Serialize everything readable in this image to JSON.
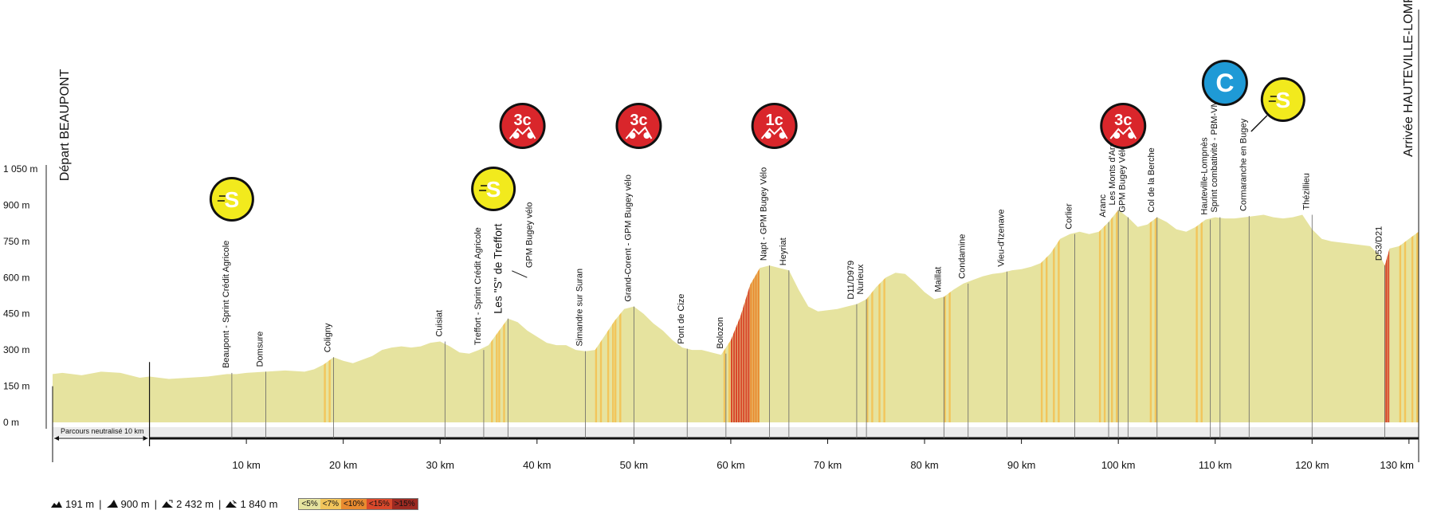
{
  "chart_data": {
    "type": "area",
    "title": "",
    "xlabel": "",
    "ylabel": "",
    "xlim": [
      -10,
      130
    ],
    "ylim": [
      0,
      1050
    ],
    "y_ticks": [
      {
        "v": 0,
        "label": "0 m"
      },
      {
        "v": 150,
        "label": "150 m"
      },
      {
        "v": 300,
        "label": "300 m"
      },
      {
        "v": 450,
        "label": "450 m"
      },
      {
        "v": 600,
        "label": "600 m"
      },
      {
        "v": 750,
        "label": "750 m"
      },
      {
        "v": 900,
        "label": "900 m"
      },
      {
        "v": 1050,
        "label": "1 050 m"
      }
    ],
    "x_ticks": [
      {
        "v": 10,
        "label": "10 km"
      },
      {
        "v": 20,
        "label": "20 km"
      },
      {
        "v": 30,
        "label": "30 km"
      },
      {
        "v": 40,
        "label": "40 km"
      },
      {
        "v": 50,
        "label": "50 km"
      },
      {
        "v": 60,
        "label": "60 km"
      },
      {
        "v": 70,
        "label": "70 km"
      },
      {
        "v": 80,
        "label": "80 km"
      },
      {
        "v": 90,
        "label": "90 km"
      },
      {
        "v": 100,
        "label": "100 km"
      },
      {
        "v": 110,
        "label": "110 km"
      },
      {
        "v": 120,
        "label": "120 km"
      },
      {
        "v": 130,
        "label": "130 km"
      }
    ],
    "start_label": "Départ BEAUPONT",
    "finish_label": "Arrivée HAUTEVILLE-LOMPNES",
    "neutral_label": "Parcours neutralisé 10 km",
    "neutral_km": [
      -10,
      0
    ],
    "profile": [
      [
        -10,
        200
      ],
      [
        -9,
        205
      ],
      [
        -7,
        195
      ],
      [
        -5,
        210
      ],
      [
        -3,
        205
      ],
      [
        -1,
        185
      ],
      [
        0,
        190
      ],
      [
        2,
        180
      ],
      [
        4,
        185
      ],
      [
        6,
        190
      ],
      [
        8,
        200
      ],
      [
        9,
        200
      ],
      [
        10,
        205
      ],
      [
        12,
        210
      ],
      [
        14,
        215
      ],
      [
        16,
        210
      ],
      [
        17,
        220
      ],
      [
        18,
        240
      ],
      [
        19,
        270
      ],
      [
        20,
        255
      ],
      [
        21,
        245
      ],
      [
        22,
        260
      ],
      [
        23,
        275
      ],
      [
        24,
        300
      ],
      [
        25,
        310
      ],
      [
        26,
        315
      ],
      [
        27,
        310
      ],
      [
        28,
        315
      ],
      [
        29,
        330
      ],
      [
        30,
        335
      ],
      [
        31,
        315
      ],
      [
        32,
        290
      ],
      [
        33,
        285
      ],
      [
        34,
        300
      ],
      [
        35,
        320
      ],
      [
        36,
        375
      ],
      [
        37,
        430
      ],
      [
        38,
        415
      ],
      [
        39,
        380
      ],
      [
        40,
        355
      ],
      [
        41,
        330
      ],
      [
        42,
        320
      ],
      [
        43,
        320
      ],
      [
        44,
        300
      ],
      [
        45,
        295
      ],
      [
        46,
        300
      ],
      [
        47,
        360
      ],
      [
        48,
        420
      ],
      [
        49,
        470
      ],
      [
        50,
        480
      ],
      [
        51,
        450
      ],
      [
        52,
        410
      ],
      [
        53,
        380
      ],
      [
        54,
        340
      ],
      [
        55,
        310
      ],
      [
        56,
        300
      ],
      [
        57,
        300
      ],
      [
        58,
        290
      ],
      [
        59,
        280
      ],
      [
        60,
        340
      ],
      [
        61,
        440
      ],
      [
        62,
        570
      ],
      [
        63,
        640
      ],
      [
        64,
        650
      ],
      [
        65,
        640
      ],
      [
        66,
        630
      ],
      [
        67,
        550
      ],
      [
        68,
        480
      ],
      [
        69,
        460
      ],
      [
        70,
        465
      ],
      [
        71,
        470
      ],
      [
        72,
        480
      ],
      [
        73,
        490
      ],
      [
        74,
        510
      ],
      [
        75,
        560
      ],
      [
        76,
        600
      ],
      [
        77,
        620
      ],
      [
        78,
        615
      ],
      [
        79,
        580
      ],
      [
        80,
        540
      ],
      [
        81,
        510
      ],
      [
        82,
        520
      ],
      [
        83,
        550
      ],
      [
        84,
        575
      ],
      [
        85,
        590
      ],
      [
        86,
        605
      ],
      [
        87,
        615
      ],
      [
        88,
        620
      ],
      [
        89,
        630
      ],
      [
        90,
        635
      ],
      [
        91,
        645
      ],
      [
        92,
        660
      ],
      [
        93,
        700
      ],
      [
        94,
        760
      ],
      [
        95,
        780
      ],
      [
        96,
        790
      ],
      [
        97,
        780
      ],
      [
        98,
        790
      ],
      [
        99,
        830
      ],
      [
        100,
        880
      ],
      [
        101,
        850
      ],
      [
        102,
        810
      ],
      [
        103,
        820
      ],
      [
        104,
        850
      ],
      [
        105,
        830
      ],
      [
        106,
        800
      ],
      [
        107,
        790
      ],
      [
        108,
        810
      ],
      [
        109,
        840
      ],
      [
        110,
        850
      ],
      [
        111,
        845
      ],
      [
        112,
        845
      ],
      [
        113,
        850
      ],
      [
        114,
        855
      ],
      [
        115,
        860
      ],
      [
        116,
        850
      ],
      [
        117,
        845
      ],
      [
        118,
        850
      ],
      [
        119,
        860
      ],
      [
        120,
        800
      ],
      [
        121,
        760
      ],
      [
        122,
        750
      ],
      [
        123,
        745
      ],
      [
        124,
        740
      ],
      [
        125,
        735
      ],
      [
        126,
        730
      ],
      [
        127,
        690
      ],
      [
        127.5,
        650
      ],
      [
        128,
        720
      ],
      [
        129,
        730
      ],
      [
        130,
        760
      ],
      [
        131,
        790
      ]
    ],
    "waypoints": [
      {
        "km": 8.5,
        "alt": 205,
        "label": "Beaupont - Sprint Crédit Agricole"
      },
      {
        "km": 12,
        "alt": 210,
        "label": "Domsure"
      },
      {
        "km": 19,
        "alt": 270,
        "label": "Coligny"
      },
      {
        "km": 30.5,
        "alt": 335,
        "label": "Cuisiat"
      },
      {
        "km": 34.5,
        "alt": 300,
        "label": "Treffort - Sprint Crédit Agricole"
      },
      {
        "km": 37,
        "alt": 430,
        "label": "Les \"S\" de Treffort",
        "big": true
      },
      {
        "km": 37,
        "alt": 430,
        "label": "GPM Bugey vélo",
        "leader": true
      },
      {
        "km": 45,
        "alt": 295,
        "label": "Simandre sur Suran"
      },
      {
        "km": 50,
        "alt": 480,
        "label": "Grand-Corent - GPM Bugey vélo"
      },
      {
        "km": 55.5,
        "alt": 305,
        "label": "Pont de Cize"
      },
      {
        "km": 59.5,
        "alt": 285,
        "label": "Bolozon"
      },
      {
        "km": 64,
        "alt": 650,
        "label": "Napt - GPM Bugey Vélo"
      },
      {
        "km": 66,
        "alt": 630,
        "label": "Heyriat"
      },
      {
        "km": 73,
        "alt": 490,
        "label": "D11/D979"
      },
      {
        "km": 74,
        "alt": 510,
        "label": "Nurieux"
      },
      {
        "km": 82,
        "alt": 520,
        "label": "Maillat"
      },
      {
        "km": 84.5,
        "alt": 575,
        "label": "Condamine"
      },
      {
        "km": 88.5,
        "alt": 625,
        "label": "Vieu-d'Izenave"
      },
      {
        "km": 95.5,
        "alt": 780,
        "label": "Corlier"
      },
      {
        "km": 99,
        "alt": 830,
        "label": "Aranc"
      },
      {
        "km": 100,
        "alt": 880,
        "label": "Les Monts d'Aranc"
      },
      {
        "km": 101,
        "alt": 850,
        "label": "GPM Bugey Vélo"
      },
      {
        "km": 104,
        "alt": 850,
        "label": "Col de la Berche"
      },
      {
        "km": 109.5,
        "alt": 840,
        "label": "Hauteville-Lompnès"
      },
      {
        "km": 110.5,
        "alt": 850,
        "label": "Sprint combativité - PBM-VMG"
      },
      {
        "km": 113.5,
        "alt": 855,
        "label": "Cormaranche en Bugey"
      },
      {
        "km": 120,
        "alt": 860,
        "label": "Thézillieu"
      },
      {
        "km": 127.5,
        "alt": 650,
        "label": "D53/D21"
      }
    ],
    "badges": [
      {
        "km": 8.5,
        "type": "sprint",
        "label": "S",
        "color": "#f2ea1d"
      },
      {
        "km": 35.5,
        "type": "sprint",
        "label": "S",
        "color": "#f2ea1d"
      },
      {
        "km": 38.5,
        "type": "climb",
        "label": "3c",
        "color": "#d9262b"
      },
      {
        "km": 50.5,
        "type": "climb",
        "label": "3c",
        "color": "#d9262b"
      },
      {
        "km": 64.5,
        "type": "climb",
        "label": "1c",
        "color": "#d9262b"
      },
      {
        "km": 100.5,
        "type": "climb",
        "label": "3c",
        "color": "#d9262b"
      },
      {
        "km": 111,
        "type": "combativity",
        "label": "C",
        "color": "#1f9ad6"
      },
      {
        "km": 117,
        "type": "sprint",
        "label": "S",
        "color": "#f2ea1d"
      }
    ],
    "gradient_colors": [
      "#e6e39f",
      "#f2c55b",
      "#e98b30",
      "#d9482b",
      "#9c2a22"
    ],
    "legend": [
      {
        "label": "<5%",
        "color": "#e6e39f"
      },
      {
        "label": "<7%",
        "color": "#f2c55b"
      },
      {
        "label": "<10%",
        "color": "#e98b30"
      },
      {
        "label": "<15%",
        "color": "#d9482b"
      },
      {
        "label": ">15%",
        "color": "#9c2a22"
      }
    ],
    "grid": false
  },
  "footer": {
    "min_alt": "191 m",
    "max_alt": "900 m",
    "total_climb": "2 432 m",
    "total_descent": "1 840 m",
    "sep": "|"
  }
}
